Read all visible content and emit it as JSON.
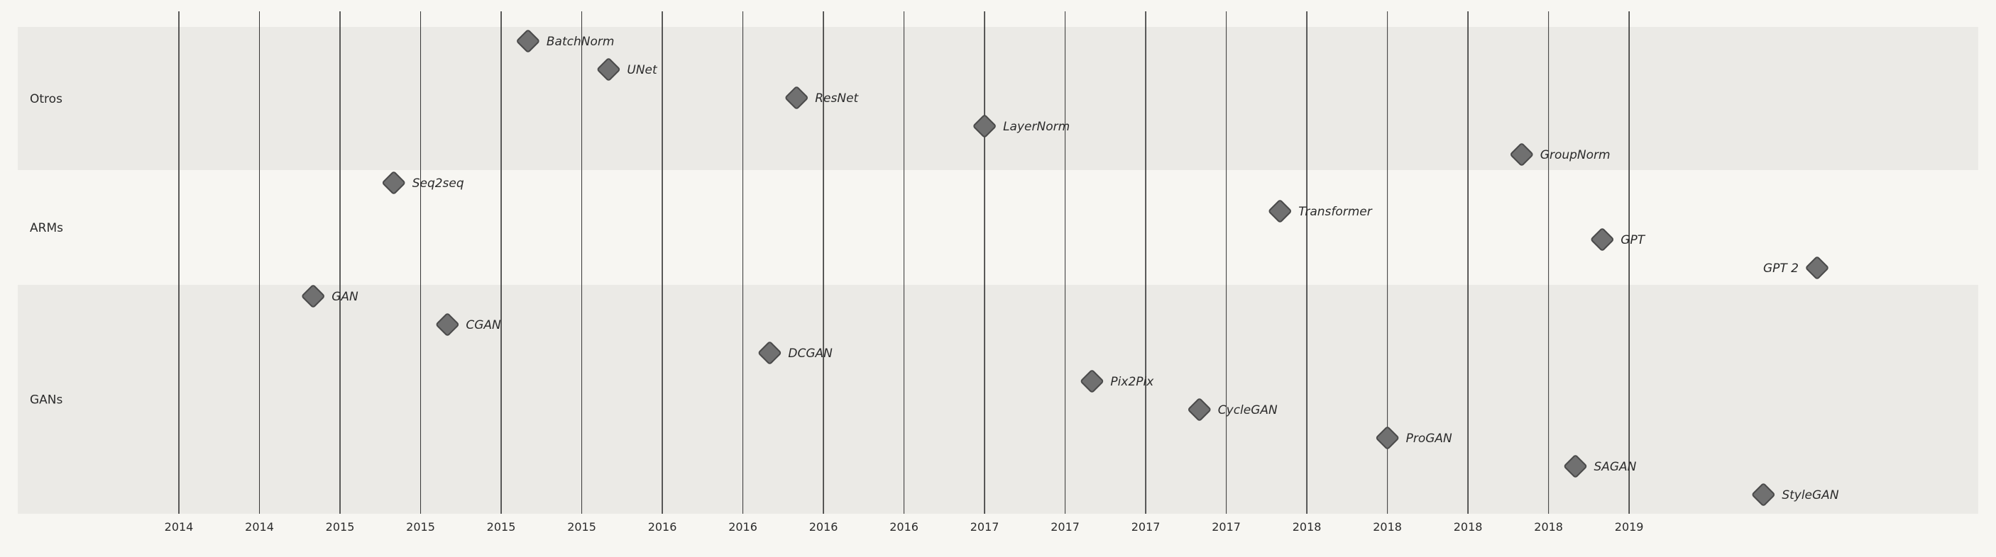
{
  "chart_data": {
    "type": "timeline",
    "title": "",
    "colors": {
      "background": "#f7f6f2",
      "lane_dark": "#ebeae6",
      "lane_light": "#f7f6f2",
      "marker_fill": "#707070",
      "marker_stroke": "#4a4a4a",
      "grid": "#333333",
      "text": "#2b2b2b"
    },
    "x_range": [
      "2013-07-01",
      "2019-08-01"
    ],
    "x_tick_labels": [
      "2014",
      "2014",
      "2015",
      "2015",
      "2015",
      "2015",
      "2016",
      "2016",
      "2016",
      "2016",
      "2017",
      "2017",
      "2017",
      "2017",
      "2018",
      "2018",
      "2018",
      "2018",
      "2019"
    ],
    "x_ticks": [
      "2014-01",
      "2014-04",
      "2014-07",
      "2014-10",
      "2015-01",
      "2015-04",
      "2015-07",
      "2015-10",
      "2016-01",
      "2016-04",
      "2016-07",
      "2016-10",
      "2017-01",
      "2017-04",
      "2017-07",
      "2017-10",
      "2018-01",
      "2018-04",
      "2018-07"
    ],
    "lanes": [
      {
        "name": "Otros",
        "shade": "dark"
      },
      {
        "name": "ARMs",
        "shade": "light"
      },
      {
        "name": "GANs",
        "shade": "dark"
      }
    ],
    "milestones": [
      {
        "label": "BatchNorm",
        "lane": "Otros",
        "date": "2015-02",
        "label_side": "right"
      },
      {
        "label": "UNet",
        "lane": "Otros",
        "date": "2015-05",
        "label_side": "right"
      },
      {
        "label": "ResNet",
        "lane": "Otros",
        "date": "2015-12",
        "label_side": "right"
      },
      {
        "label": "LayerNorm",
        "lane": "Otros",
        "date": "2016-07",
        "label_side": "right"
      },
      {
        "label": "GroupNorm",
        "lane": "Otros",
        "date": "2018-03",
        "label_side": "right"
      },
      {
        "label": "Seq2seq",
        "lane": "ARMs",
        "date": "2014-09",
        "label_side": "right"
      },
      {
        "label": "Transformer",
        "lane": "ARMs",
        "date": "2017-06",
        "label_side": "right"
      },
      {
        "label": "GPT",
        "lane": "ARMs",
        "date": "2018-06",
        "label_side": "right"
      },
      {
        "label": "GPT 2",
        "lane": "ARMs",
        "date": "2019-02",
        "label_side": "left"
      },
      {
        "label": "GAN",
        "lane": "GANs",
        "date": "2014-06",
        "label_side": "right"
      },
      {
        "label": "CGAN",
        "lane": "GANs",
        "date": "2014-11",
        "label_side": "right"
      },
      {
        "label": "DCGAN",
        "lane": "GANs",
        "date": "2015-11",
        "label_side": "right"
      },
      {
        "label": "Pix2Pix",
        "lane": "GANs",
        "date": "2016-11",
        "label_side": "right"
      },
      {
        "label": "CycleGAN",
        "lane": "GANs",
        "date": "2017-03",
        "label_side": "right"
      },
      {
        "label": "ProGAN",
        "lane": "GANs",
        "date": "2017-10",
        "label_side": "right"
      },
      {
        "label": "SAGAN",
        "lane": "GANs",
        "date": "2018-05",
        "label_side": "right"
      },
      {
        "label": "StyleGAN",
        "lane": "GANs",
        "date": "2018-12",
        "label_side": "right"
      }
    ]
  }
}
